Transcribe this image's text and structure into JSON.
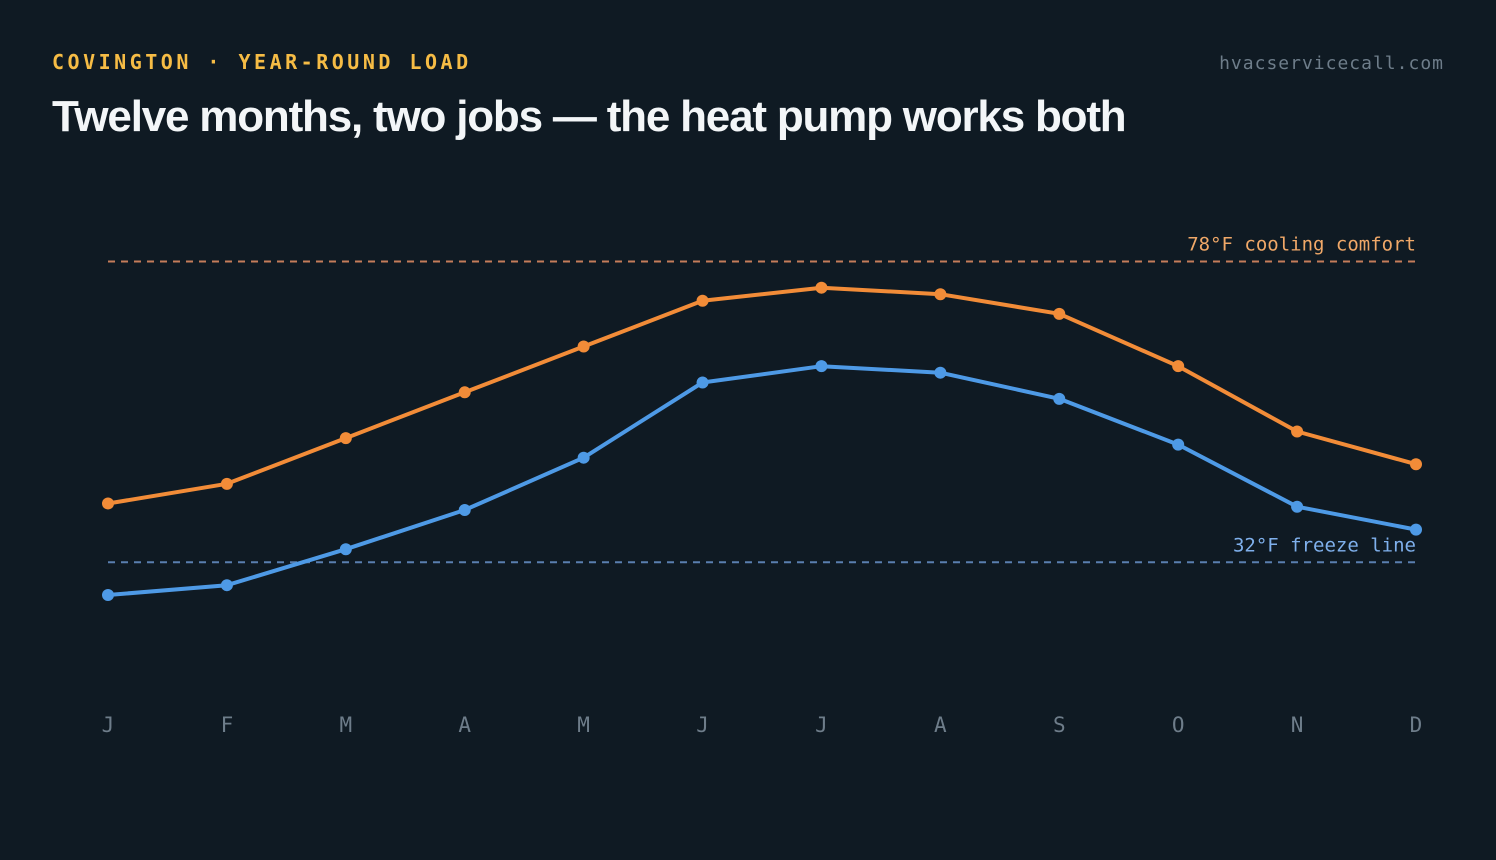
{
  "header": {
    "kicker": "COVINGTON · YEAR-ROUND LOAD",
    "site": "hvacservicecall.com",
    "title": "Twelve months, two jobs — the heat pump works both"
  },
  "chart_data": {
    "type": "line",
    "title": "Twelve months, two jobs — the heat pump works both",
    "xlabel": "",
    "ylabel": "",
    "categories": [
      "J",
      "F",
      "M",
      "A",
      "M",
      "J",
      "J",
      "A",
      "S",
      "O",
      "N",
      "D"
    ],
    "series": [
      {
        "color": "#f28c38",
        "values": [
          41,
          44,
          51,
          58,
          65,
          72,
          74,
          73,
          70,
          62,
          52,
          47
        ]
      },
      {
        "color": "#4e9ae6",
        "values": [
          27,
          28.5,
          34,
          40,
          48,
          59.5,
          62,
          61,
          57,
          50,
          40.5,
          37
        ]
      }
    ],
    "reference_lines": [
      {
        "label": "78°F cooling comfort",
        "value": 78,
        "color": "#c47c5a",
        "label_color": "#f0a868"
      },
      {
        "label": "32°F freeze line",
        "value": 32,
        "color": "#5a7fb0",
        "label_color": "#7fb0ec"
      }
    ],
    "ylim": [
      14,
      92
    ],
    "grid": false,
    "legend": "none"
  }
}
